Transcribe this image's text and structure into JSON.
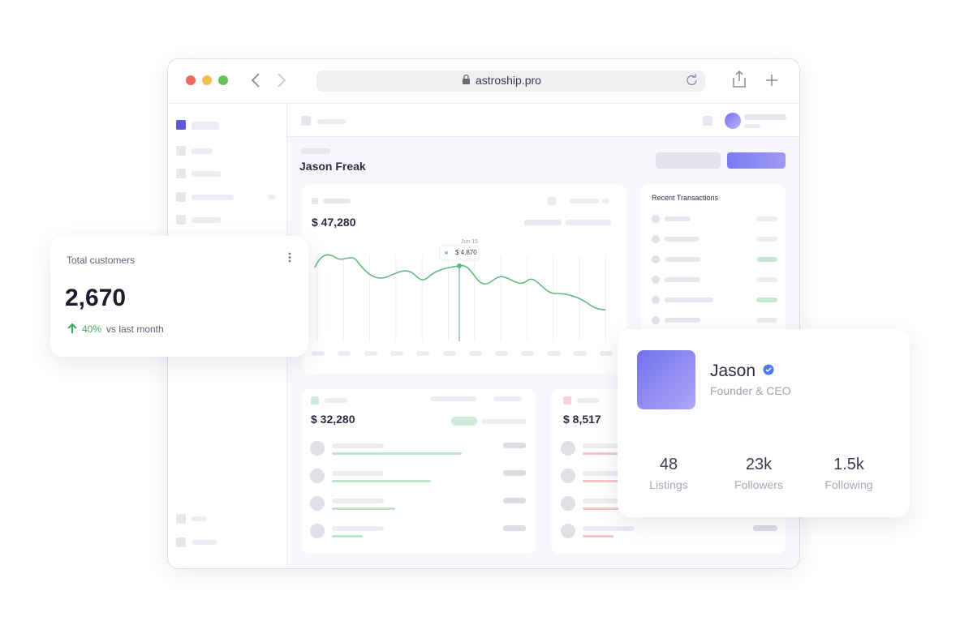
{
  "browser": {
    "url": "astroship.pro"
  },
  "dashboard": {
    "title": "Jason Freak",
    "revenue": "$ 47,280",
    "tooltip": {
      "date": "Jun 15",
      "value": "$ 4,870"
    },
    "transactions_title": "Recent Transactions",
    "income": "$ 32,280",
    "expenses": "$ 8,517"
  },
  "customers_card": {
    "title": "Total customers",
    "value": "2,670",
    "change": "40%",
    "change_note": "vs last month"
  },
  "profile_card": {
    "name": "Jason",
    "role": "Founder & CEO",
    "stats": [
      {
        "value": "48",
        "label": "Listings"
      },
      {
        "value": "23k",
        "label": "Followers"
      },
      {
        "value": "1.5k",
        "label": "Following"
      }
    ]
  }
}
